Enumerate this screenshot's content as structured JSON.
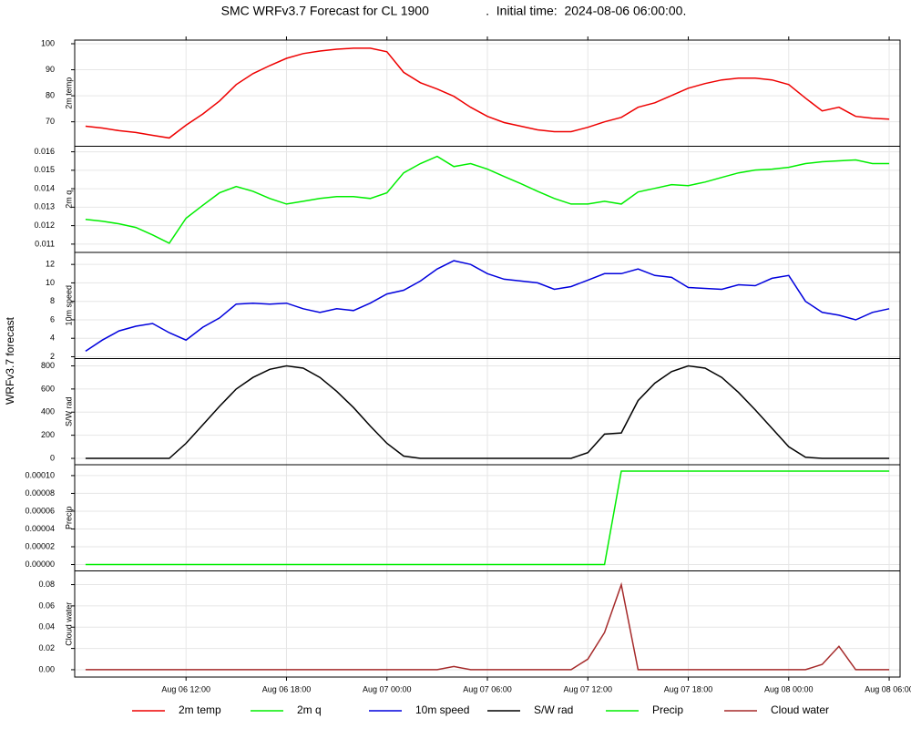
{
  "chart_data": {
    "type": "line",
    "title": "SMC WRFv3.7 Forecast for CL 1900                .  Initial time:  2024-08-06 06:00:00.",
    "ylabel": "WRFv3.7 forecast",
    "grid": true,
    "legend": "bottom",
    "xlim": [
      "Aug 06 05:21",
      "Aug 08 06:39"
    ],
    "xticks": [
      "Aug 06 12:00",
      "Aug 06 18:00",
      "Aug 07 00:00",
      "Aug 07 06:00",
      "Aug 07 12:00",
      "Aug 07 18:00",
      "Aug 08 00:00",
      "Aug 08 06:00"
    ],
    "x": [
      "Aug 06 06:00",
      "Aug 06 07:00",
      "Aug 06 08:00",
      "Aug 06 09:00",
      "Aug 06 10:00",
      "Aug 06 11:00",
      "Aug 06 12:00",
      "Aug 06 13:00",
      "Aug 06 14:00",
      "Aug 06 15:00",
      "Aug 06 16:00",
      "Aug 06 17:00",
      "Aug 06 18:00",
      "Aug 06 19:00",
      "Aug 06 20:00",
      "Aug 06 21:00",
      "Aug 06 22:00",
      "Aug 06 23:00",
      "Aug 07 00:00",
      "Aug 07 01:00",
      "Aug 07 02:00",
      "Aug 07 03:00",
      "Aug 07 04:00",
      "Aug 07 05:00",
      "Aug 07 06:00",
      "Aug 07 07:00",
      "Aug 07 08:00",
      "Aug 07 09:00",
      "Aug 07 10:00",
      "Aug 07 11:00",
      "Aug 07 12:00",
      "Aug 07 13:00",
      "Aug 07 14:00",
      "Aug 07 15:00",
      "Aug 07 16:00",
      "Aug 07 17:00",
      "Aug 07 18:00",
      "Aug 07 19:00",
      "Aug 07 20:00",
      "Aug 07 21:00",
      "Aug 07 22:00",
      "Aug 07 23:00",
      "Aug 08 00:00",
      "Aug 08 01:00",
      "Aug 08 02:00",
      "Aug 08 03:00",
      "Aug 08 04:00",
      "Aug 08 05:00",
      "Aug 08 06:00"
    ],
    "series": [
      {
        "name": "2m temp",
        "color": "#ee0000",
        "ylim": [
          60.6,
          101.4
        ],
        "yticks": [
          70,
          80,
          90,
          100
        ],
        "values": [
          68.3,
          67.6,
          66.6,
          65.9,
          64.8,
          63.8,
          68.7,
          73,
          78,
          84.3,
          88.5,
          91.6,
          94.4,
          96.2,
          97.2,
          97.9,
          98.3,
          98.3,
          96.9,
          89,
          85,
          82.6,
          79.8,
          75.6,
          72.1,
          69.7,
          68.3,
          66.9,
          66.2,
          66.2,
          67.9,
          70,
          71.7,
          75.6,
          77.3,
          80.1,
          82.9,
          84.7,
          86.1,
          86.8,
          86.8,
          86.1,
          84.3,
          79.1,
          74.2,
          75.6,
          72.1,
          71.4,
          71
        ]
      },
      {
        "name": "2m q",
        "color": "#00ee00",
        "ylim": [
          0.01055,
          0.0163
        ],
        "yticks": [
          0.011,
          0.012,
          0.013,
          0.014,
          0.015,
          0.016
        ],
        "values": [
          0.01234,
          0.01224,
          0.0121,
          0.0119,
          0.0115,
          0.01105,
          0.0124,
          0.0131,
          0.01378,
          0.01412,
          0.01386,
          0.01347,
          0.01317,
          0.01332,
          0.01347,
          0.01357,
          0.01357,
          0.01347,
          0.01378,
          0.01486,
          0.01536,
          0.01575,
          0.0152,
          0.01536,
          0.01506,
          0.01466,
          0.01427,
          0.01386,
          0.01347,
          0.01317,
          0.01317,
          0.01332,
          0.01317,
          0.01382,
          0.01402,
          0.01422,
          0.01417,
          0.01436,
          0.01461,
          0.01486,
          0.01501,
          0.01506,
          0.01516,
          0.01536,
          0.01546,
          0.01551,
          0.01556,
          0.01536,
          0.01536
        ]
      },
      {
        "name": "10m speed",
        "color": "#0000dd",
        "ylim": [
          1.8,
          13.3
        ],
        "yticks": [
          2,
          4,
          6,
          8,
          10,
          12
        ],
        "values": [
          2.6,
          3.8,
          4.8,
          5.3,
          5.6,
          4.6,
          3.8,
          5.2,
          6.2,
          7.7,
          7.8,
          7.7,
          7.8,
          7.2,
          6.8,
          7.2,
          7.0,
          7.8,
          8.8,
          9.2,
          10.2,
          11.5,
          12.4,
          12.0,
          11.0,
          10.4,
          10.2,
          10.0,
          9.3,
          9.6,
          10.3,
          11.0,
          11.0,
          11.5,
          10.8,
          10.6,
          9.5,
          9.4,
          9.3,
          9.8,
          9.7,
          10.5,
          10.8,
          8.0,
          6.8,
          6.5,
          6.0,
          6.8,
          7.2
        ]
      },
      {
        "name": "S/W rad",
        "color": "#000000",
        "ylim": [
          -55,
          863
        ],
        "yticks": [
          0,
          200,
          400,
          600,
          800
        ],
        "values": [
          0,
          0,
          0,
          0,
          0,
          0,
          130,
          290,
          450,
          600,
          700,
          770,
          800,
          780,
          700,
          580,
          440,
          280,
          130,
          20,
          0,
          0,
          0,
          0,
          0,
          0,
          0,
          0,
          0,
          0,
          50,
          210,
          220,
          500,
          650,
          750,
          800,
          780,
          700,
          570,
          420,
          260,
          100,
          10,
          0,
          0,
          0,
          0,
          0
        ]
      },
      {
        "name": "Precip",
        "color": "#00ee00",
        "ylim": [
          -7.14e-06,
          0.0001122
        ],
        "yticks": [
          {
            "value": 0,
            "label": "0.00000"
          },
          {
            "value": 2e-05,
            "label": "0.00002"
          },
          {
            "value": 4e-05,
            "label": "0.00004"
          },
          {
            "value": 6e-05,
            "label": "0.00006"
          },
          {
            "value": 8e-05,
            "label": "0.00008"
          },
          {
            "value": 0.0001,
            "label": "0.00010"
          }
        ],
        "values": [
          0,
          0,
          0,
          0,
          0,
          0,
          0,
          0,
          0,
          0,
          0,
          0,
          0,
          0,
          0,
          0,
          0,
          0,
          0,
          0,
          0,
          0,
          0,
          0,
          0,
          0,
          0,
          0,
          0,
          0,
          0,
          0,
          0.000105,
          0.000105,
          0.000105,
          0.000105,
          0.000105,
          0.000105,
          0.000105,
          0.000105,
          0.000105,
          0.000105,
          0.000105,
          0.000105,
          0.000105,
          0.000105,
          0.000105,
          0.000105,
          0.000105
        ]
      },
      {
        "name": "Cloud water",
        "color": "#a52a2a",
        "ylim": [
          -0.0069,
          0.0929
        ],
        "yticks": [
          {
            "value": 0,
            "label": "0.00"
          },
          0.02,
          0.04,
          0.06,
          0.08
        ],
        "values": [
          0,
          0,
          0,
          0,
          0,
          0,
          0,
          0,
          0,
          0,
          0,
          0,
          0,
          0,
          0,
          0,
          0,
          0,
          0,
          0,
          0,
          0,
          0.003,
          0,
          0,
          0,
          0,
          0,
          0,
          0,
          0.01,
          0.035,
          0.08,
          0,
          0,
          0,
          0,
          0,
          0,
          0,
          0,
          0,
          0,
          0,
          0.005,
          0.022,
          0,
          0,
          0
        ]
      }
    ]
  }
}
